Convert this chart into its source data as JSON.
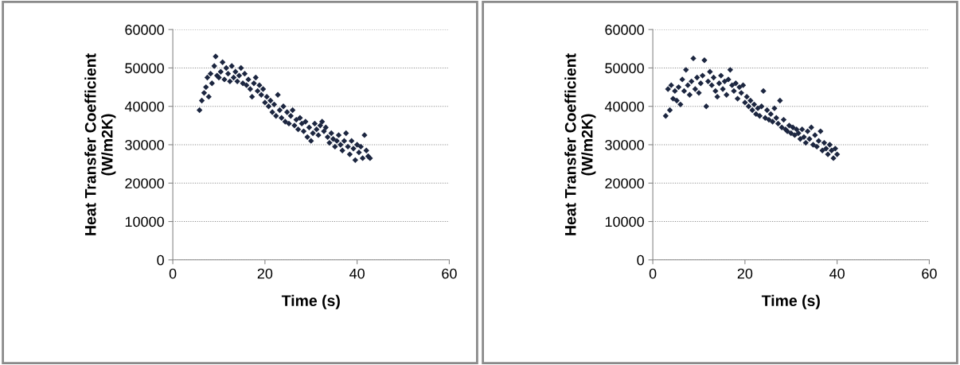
{
  "chart_data": [
    {
      "type": "scatter",
      "xlabel": "Time (s)",
      "ylabel": "Heat Transfer Coefficient\n(W/m2K)",
      "xlim": [
        0,
        60
      ],
      "ylim": [
        0,
        60000
      ],
      "xticks": [
        0,
        20,
        40,
        60
      ],
      "yticks": [
        0,
        10000,
        20000,
        30000,
        40000,
        50000,
        60000
      ],
      "grid": "y",
      "marker": "diamond",
      "legend": false,
      "series": [
        {
          "color": "#1c2640",
          "x": [
            5.8,
            6.3,
            6.8,
            7.2,
            7.5,
            7.8,
            8.2,
            8.5,
            9,
            9.3,
            9.6,
            10,
            10.4,
            10.8,
            11.2,
            11.6,
            12,
            12.4,
            12.8,
            13.2,
            13.6,
            14,
            14.4,
            14.8,
            15.2,
            15.6,
            16,
            16.4,
            16.8,
            17.2,
            17.6,
            18,
            18.4,
            18.8,
            19.2,
            19.6,
            20,
            20.4,
            20.8,
            21.2,
            21.6,
            22,
            22.4,
            22.8,
            23.2,
            23.6,
            24,
            24.4,
            24.8,
            25.2,
            25.6,
            26,
            26.4,
            26.8,
            27.2,
            27.6,
            28,
            28.4,
            28.8,
            29.2,
            29.6,
            30,
            30.4,
            30.8,
            31.2,
            31.6,
            32,
            32.4,
            32.8,
            33.2,
            33.6,
            34,
            34.4,
            34.8,
            35.2,
            35.6,
            36,
            36.4,
            36.8,
            37.2,
            37.6,
            38,
            38.4,
            38.8,
            39.2,
            39.6,
            40,
            40.4,
            40.8,
            41.2,
            41.6,
            42,
            42.4,
            42.8
          ],
          "values": [
            39000,
            41500,
            43500,
            45000,
            47500,
            42500,
            48500,
            46000,
            50500,
            53000,
            48000,
            47500,
            49000,
            51500,
            47000,
            50000,
            48500,
            46500,
            50500,
            47500,
            49000,
            46500,
            48000,
            50000,
            46000,
            48500,
            45500,
            47000,
            44500,
            42500,
            46000,
            47500,
            44000,
            45500,
            43000,
            44500,
            41000,
            42500,
            40000,
            41500,
            38500,
            40500,
            37500,
            43000,
            39000,
            37000,
            40000,
            36000,
            38500,
            35500,
            37500,
            39000,
            35000,
            36500,
            34000,
            37000,
            35500,
            33500,
            36000,
            32000,
            34500,
            31000,
            33000,
            35500,
            34000,
            32500,
            35000,
            36000,
            33500,
            34500,
            32000,
            30500,
            33000,
            31500,
            29500,
            31000,
            32500,
            30000,
            28500,
            31000,
            33000,
            29500,
            27500,
            31000,
            29000,
            26000,
            30000,
            28000,
            29500,
            26500,
            32500,
            28500,
            27000,
            26500
          ]
        }
      ]
    },
    {
      "type": "scatter",
      "xlabel": "Time (s)",
      "ylabel": "Heat Transfer Coefficient\n(W/m2K)",
      "xlim": [
        0,
        60
      ],
      "ylim": [
        0,
        60000
      ],
      "xticks": [
        0,
        20,
        40,
        60
      ],
      "yticks": [
        0,
        10000,
        20000,
        30000,
        40000,
        50000,
        60000
      ],
      "grid": "y",
      "marker": "diamond",
      "legend": false,
      "series": [
        {
          "color": "#1c2640",
          "x": [
            2.8,
            3.3,
            3.7,
            4,
            4.4,
            4.8,
            5.2,
            5.6,
            6,
            6.4,
            6.8,
            7.2,
            7.6,
            8,
            8.4,
            8.8,
            9.2,
            9.6,
            10,
            10.4,
            10.8,
            11.2,
            11.6,
            12,
            12.4,
            12.8,
            13.2,
            13.6,
            14,
            14.4,
            14.8,
            15.2,
            15.6,
            16,
            16.4,
            16.8,
            17.2,
            17.6,
            18,
            18.4,
            18.8,
            19.2,
            19.6,
            20,
            20.4,
            20.8,
            21.2,
            21.6,
            22,
            22.4,
            22.8,
            23.2,
            23.6,
            24,
            24.4,
            24.8,
            25.2,
            25.6,
            26,
            26.4,
            26.8,
            27.2,
            27.6,
            28,
            28.4,
            28.8,
            29.2,
            29.6,
            30,
            30.4,
            30.8,
            31.2,
            31.6,
            32,
            32.4,
            32.8,
            33.2,
            33.6,
            34,
            34.4,
            34.8,
            35.2,
            35.6,
            36,
            36.4,
            36.8,
            37.2,
            37.6,
            38,
            38.4,
            38.8,
            39.2,
            39.6,
            40
          ],
          "values": [
            37500,
            44500,
            39000,
            45500,
            42000,
            44000,
            41500,
            45000,
            40500,
            47000,
            44000,
            49500,
            45500,
            43000,
            46500,
            52500,
            44500,
            47500,
            43500,
            46000,
            48000,
            52000,
            40000,
            46500,
            49000,
            45500,
            47500,
            44000,
            42500,
            46000,
            48000,
            44500,
            46500,
            43000,
            47000,
            49500,
            45500,
            44000,
            46000,
            42000,
            45000,
            43500,
            45500,
            41000,
            42500,
            40000,
            41500,
            39000,
            40500,
            38000,
            39500,
            37500,
            40000,
            44000,
            37000,
            39000,
            36500,
            38000,
            36000,
            39500,
            37000,
            35500,
            41500,
            34500,
            36500,
            34000,
            33500,
            35000,
            33000,
            34500,
            32500,
            34000,
            33000,
            31500,
            34000,
            32000,
            30500,
            33500,
            31500,
            34500,
            30000,
            32500,
            29500,
            31000,
            33500,
            28500,
            30500,
            29000,
            27500,
            30000,
            28500,
            26500,
            29000,
            27500
          ]
        }
      ]
    }
  ]
}
